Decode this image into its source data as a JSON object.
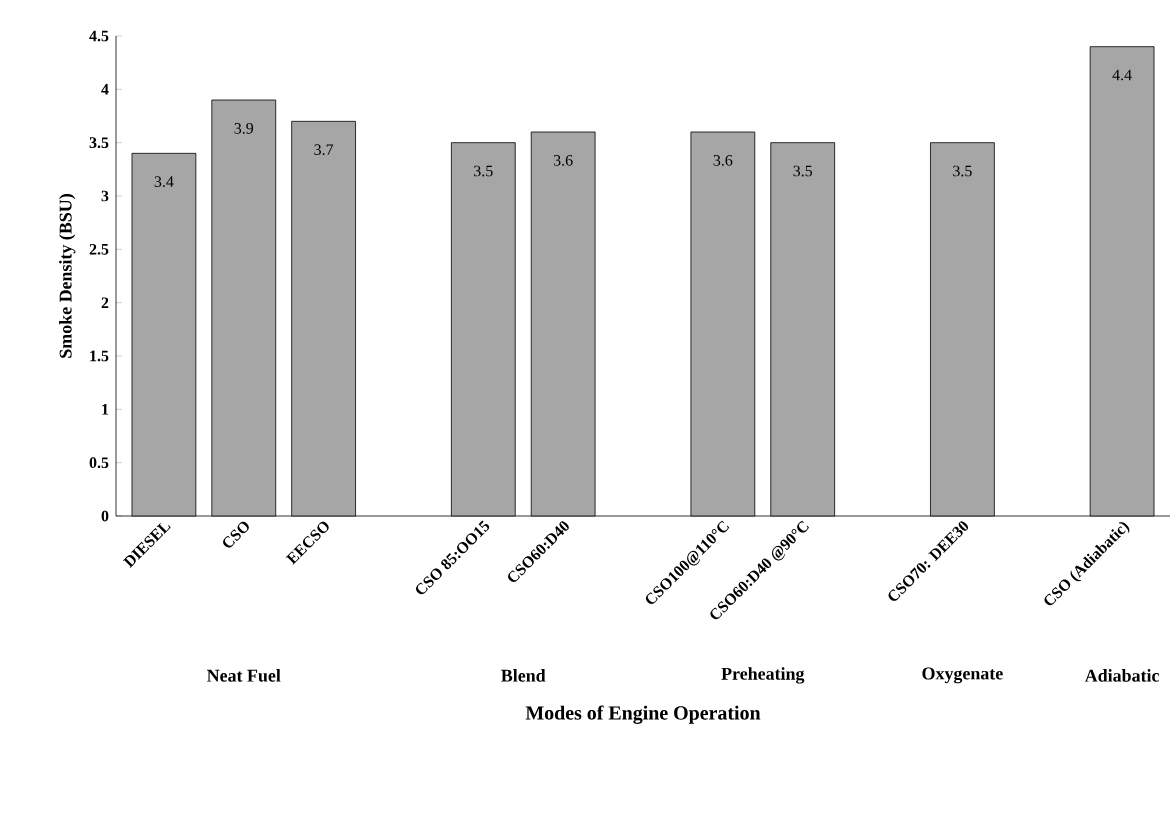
{
  "chart_data": {
    "type": "bar",
    "xlabel": "Modes of Engine Operation",
    "ylabel": "Smoke Density (BSU)",
    "categories": [
      "DIESEL",
      "CSO",
      "EECSO",
      null,
      "CSO 85:OO15",
      "CSO60:D40",
      null,
      "CSO100@110°C",
      "CSO60:D40 @90°C",
      null,
      "CSO70: DEE30",
      null,
      "CSO (Adiabatic)"
    ],
    "values": [
      3.4,
      3.9,
      3.7,
      null,
      3.5,
      3.6,
      null,
      3.6,
      3.5,
      null,
      3.5,
      null,
      4.4
    ],
    "color": "#a6a6a6",
    "data_labels": true,
    "ylim": [
      0,
      4.5
    ],
    "yticks": [
      0,
      0.5,
      1,
      1.5,
      2,
      2.5,
      3,
      3.5,
      4,
      4.5
    ],
    "annotations": [
      "Neat Fuel",
      "Blend",
      "Preheating",
      "Oxygenate",
      "Adiabatic"
    ]
  }
}
